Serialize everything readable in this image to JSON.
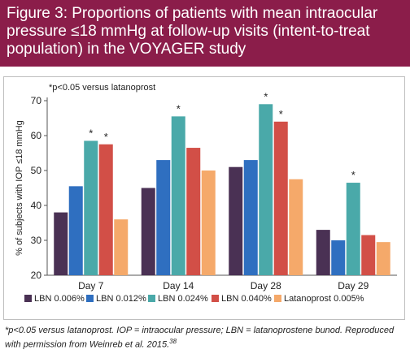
{
  "figure": {
    "title": "Figure 3: Proportions of patients with mean intraocular pressure ≤18 mmHg at follow-up visits (intent-to-treat population) in the VOYAGER study",
    "footnote": "*p<0.05 versus latanoprost. IOP = intraocular pressure; LBN = latanoprostene bunod. Reproduced with permission from Weinreb et al. 2015.",
    "footnote_ref": "38"
  },
  "chart_data": {
    "type": "bar",
    "title": "",
    "annotation": "*p<0.05 versus latanoprost",
    "xlabel": "",
    "ylabel": "% of subjects with IOP ≤18 mmHg",
    "ylim": [
      20,
      70
    ],
    "yticks": [
      20,
      30,
      40,
      50,
      60,
      70
    ],
    "categories": [
      "Day 7",
      "Day 14",
      "Day 28",
      "Day 29"
    ],
    "legend_position": "bottom",
    "grid": false,
    "series": [
      {
        "name": "LBN 0.006%",
        "color": "#4a3154",
        "values": [
          38,
          45,
          51,
          33
        ],
        "significant": [
          false,
          false,
          false,
          false
        ]
      },
      {
        "name": "LBN 0.012%",
        "color": "#2f6fc0",
        "values": [
          45.5,
          53,
          53,
          30
        ],
        "significant": [
          false,
          false,
          false,
          false
        ]
      },
      {
        "name": "LBN 0.024%",
        "color": "#4aa9a9",
        "values": [
          58.5,
          65.5,
          69,
          46.5
        ],
        "significant": [
          true,
          true,
          true,
          true
        ]
      },
      {
        "name": "LBN 0.040%",
        "color": "#d24f47",
        "values": [
          57.5,
          56.5,
          64,
          31.5
        ],
        "significant": [
          true,
          false,
          true,
          false
        ]
      },
      {
        "name": "Latanoprost 0.005%",
        "color": "#f5a96a",
        "values": [
          36,
          50,
          47.5,
          29.5
        ],
        "significant": [
          false,
          false,
          false,
          false
        ]
      }
    ]
  }
}
